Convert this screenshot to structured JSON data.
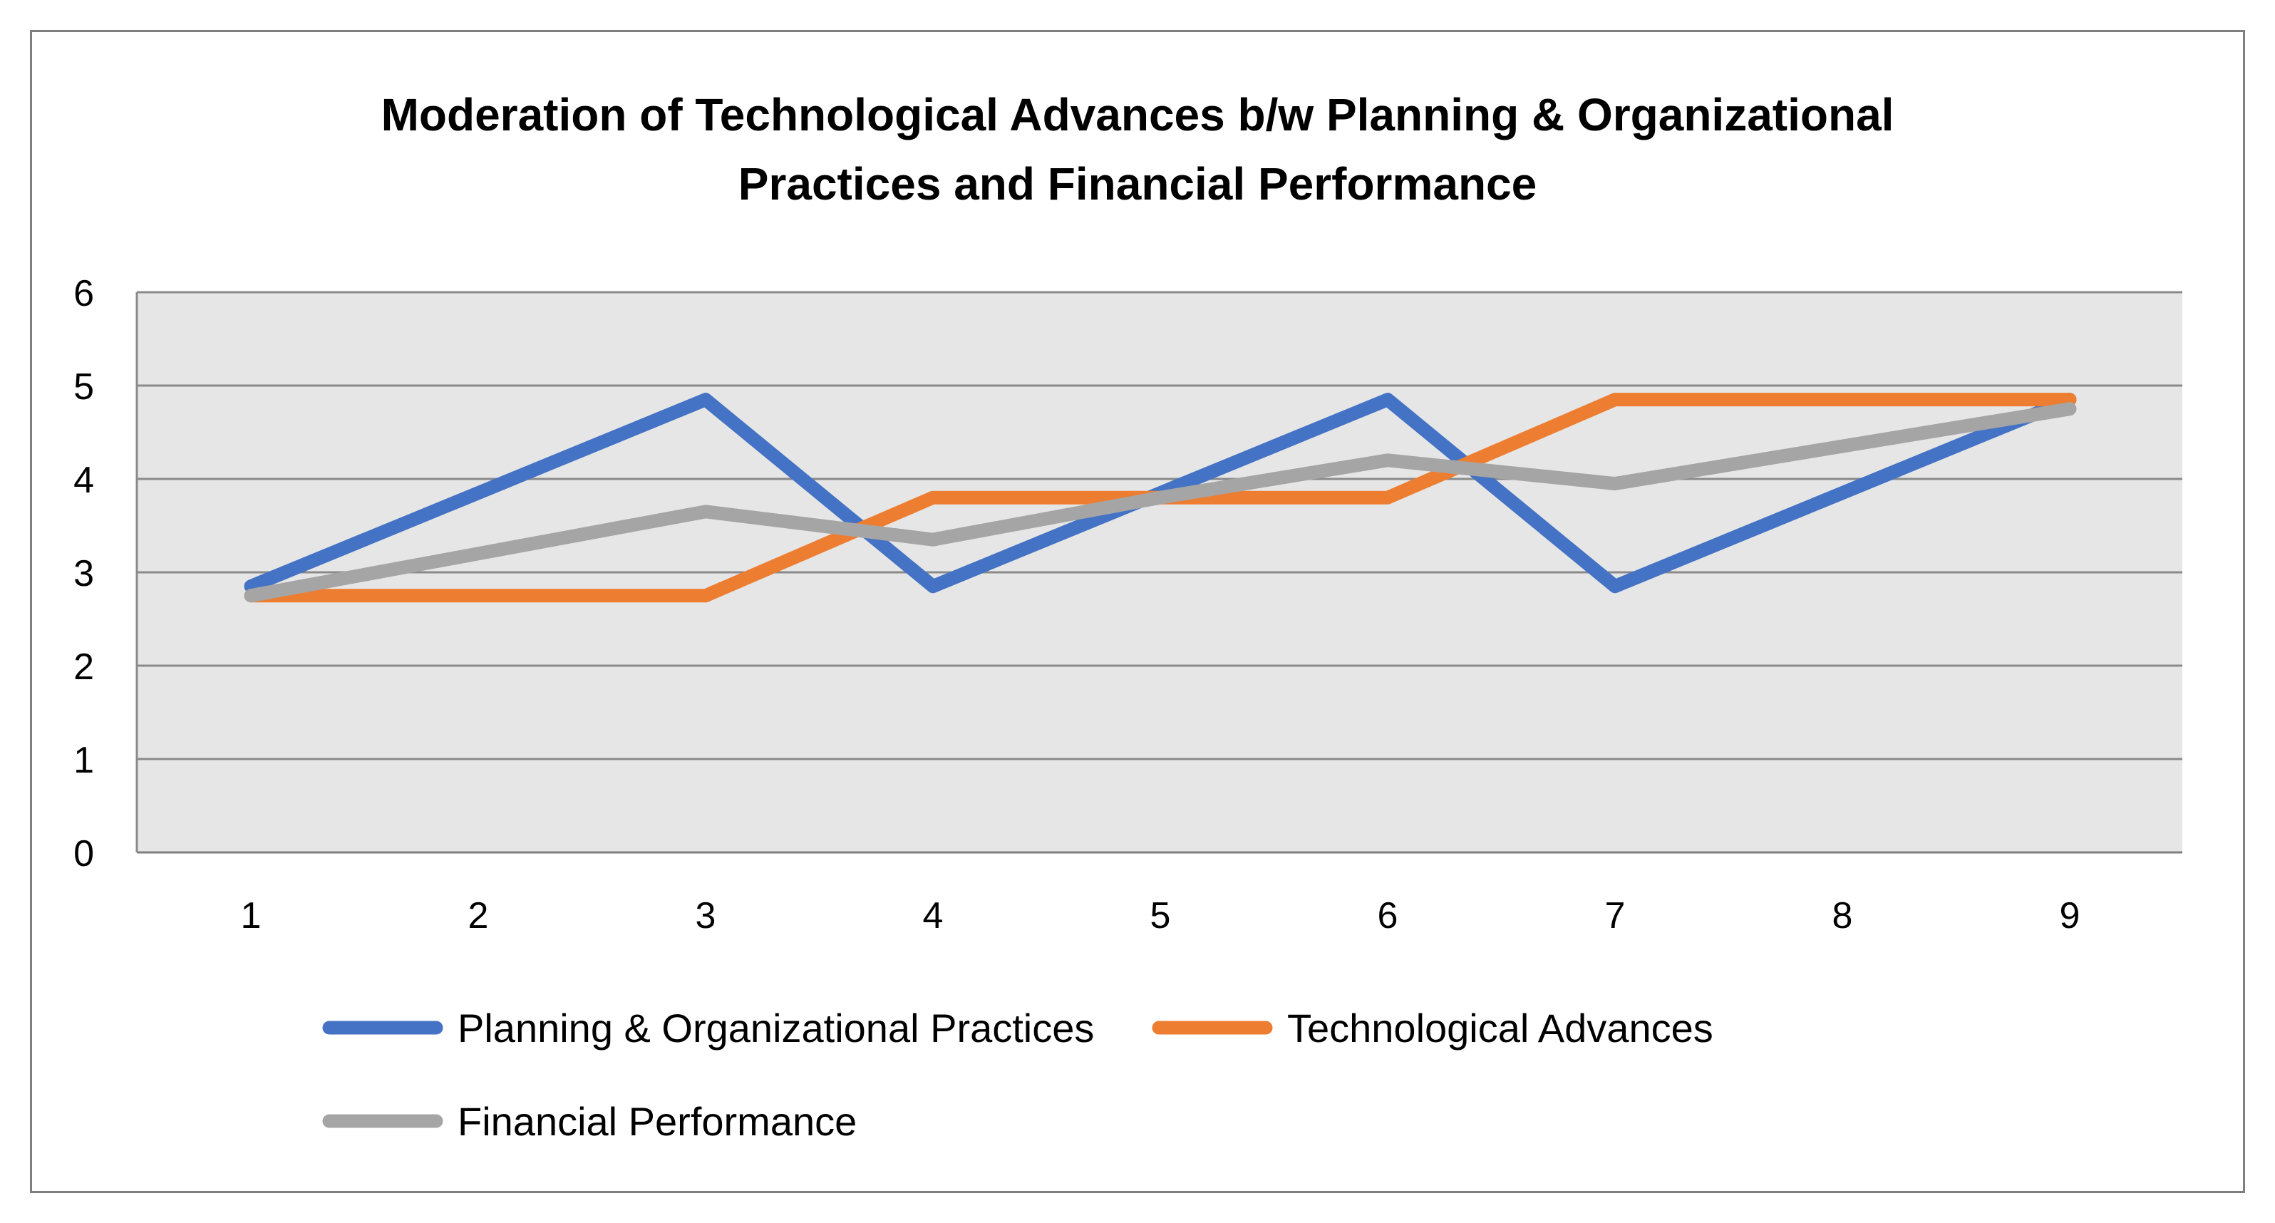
{
  "chart_data": {
    "type": "line",
    "title_lines": [
      "Moderation of Technological Advances b/w Planning & Organizational",
      "Practices and Financial Performance"
    ],
    "xlabel": "",
    "ylabel": "",
    "categories": [
      "1",
      "2",
      "3",
      "4",
      "5",
      "6",
      "7",
      "8",
      "9"
    ],
    "yticks": [
      "0",
      "1",
      "2",
      "3",
      "4",
      "5",
      "6"
    ],
    "ylim": [
      0,
      6
    ],
    "grid": true,
    "legend_position": "bottom",
    "series": [
      {
        "name": "Planning & Organizational Practices",
        "color": "#4472C4",
        "values": [
          2.85,
          3.85,
          4.85,
          2.85,
          3.85,
          4.85,
          2.85,
          3.85,
          4.85
        ]
      },
      {
        "name": "Technological Advances",
        "color": "#ED7D31",
        "values": [
          2.75,
          2.75,
          2.75,
          3.8,
          3.8,
          3.8,
          4.85,
          4.85,
          4.85
        ]
      },
      {
        "name": "Financial Performance",
        "color": "#A5A5A5",
        "values": [
          2.75,
          3.2,
          3.65,
          3.35,
          3.8,
          4.2,
          3.95,
          4.35,
          4.75
        ]
      }
    ]
  }
}
